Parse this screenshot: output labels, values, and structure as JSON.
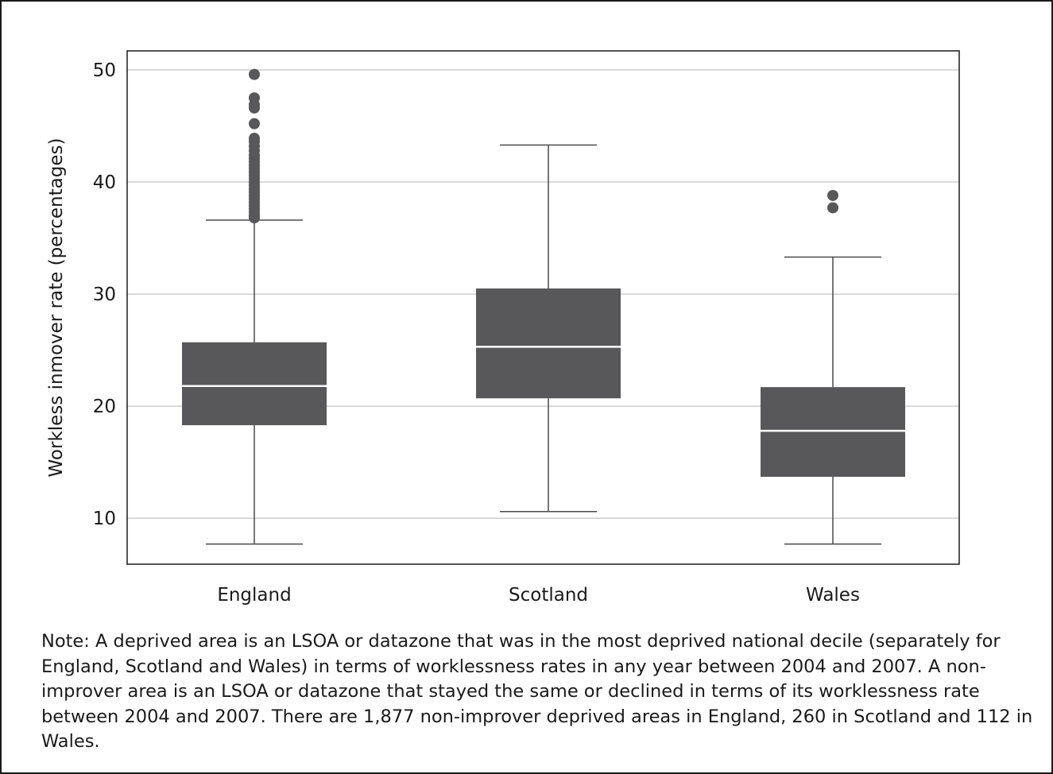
{
  "chart_data": {
    "type": "box",
    "title": "",
    "xlabel": "",
    "ylabel": "Workless inmover rate (percentages)",
    "ylim": [
      5.9,
      51.7
    ],
    "yticks": [
      10,
      20,
      30,
      40,
      50
    ],
    "grid": "horizontal",
    "legend": "none",
    "color": "#58585a",
    "median_color": "#ffffff",
    "categories": [
      "England",
      "Scotland",
      "Wales"
    ],
    "boxes": [
      {
        "category": "England",
        "whisker_low": 7.7,
        "q1": 18.3,
        "median": 21.8,
        "q3": 25.7,
        "whisker_high": 36.6,
        "outliers": [
          36.8,
          37.0,
          37.3,
          37.6,
          37.9,
          38.2,
          38.5,
          38.8,
          39.1,
          39.4,
          39.7,
          40.0,
          40.3,
          40.6,
          40.9,
          41.2,
          41.5,
          41.8,
          42.1,
          42.4,
          42.8,
          43.2,
          43.6,
          43.9,
          45.2,
          46.6,
          46.9,
          47.5,
          49.6
        ]
      },
      {
        "category": "Scotland",
        "whisker_low": 10.6,
        "q1": 20.7,
        "median": 25.3,
        "q3": 30.5,
        "whisker_high": 43.3,
        "outliers": []
      },
      {
        "category": "Wales",
        "whisker_low": 7.7,
        "q1": 13.7,
        "median": 17.8,
        "q3": 21.7,
        "whisker_high": 33.3,
        "outliers": [
          37.7,
          38.8
        ]
      }
    ]
  },
  "note": "Note: A deprived area is an LSOA or datazone that was in the most deprived national decile (separately for England, Scotland and Wales) in terms of worklessness rates in any year between 2004 and 2007. A non-improver area is an LSOA or datazone that stayed the same or declined in terms of its worklessness rate between 2004 and 2007. There are 1,877 non-improver deprived areas in England, 260 in Scotland and 112 in Wales."
}
